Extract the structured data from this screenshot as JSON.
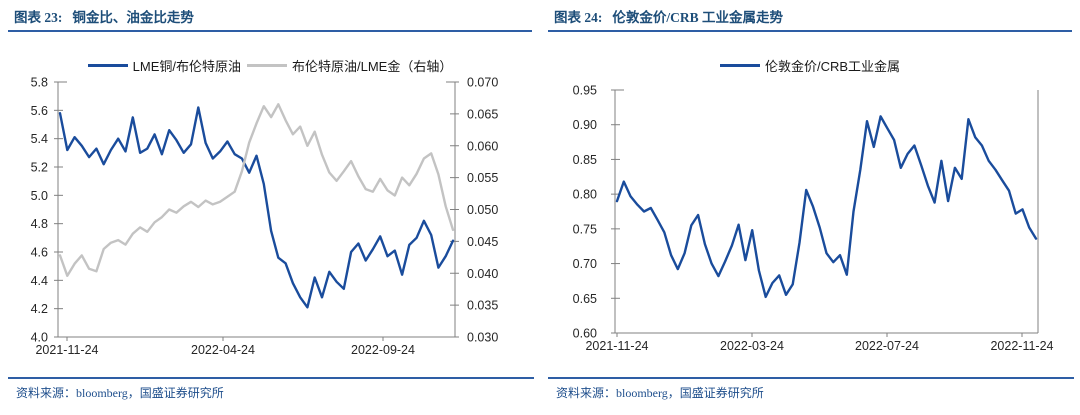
{
  "colors": {
    "accent_rule_blue": "#2e5ea5",
    "title_blue": "#1e4e79",
    "source_blue": "#1e4e8c",
    "line_blue": "#1a4c9c",
    "line_gray": "#c3c3c3",
    "axis_gray": "#808080",
    "axis_text": "#262626"
  },
  "panels": [
    {
      "title_prefix": "图表 23:",
      "title": "铜金比、油金比走势",
      "source": "资料来源：bloomberg，国盛证券研究所"
    },
    {
      "title_prefix": "图表 24:",
      "title": "伦敦金价/CRB 工业金属走势",
      "source": "资料来源：bloomberg，国盛证券研究所"
    }
  ],
  "chart_data": [
    {
      "type": "line",
      "title": "图表 23: 铜金比、油金比走势",
      "legend_position": "top",
      "grid": false,
      "x_tick_labels": [
        "2021-11-24",
        "2022-04-24",
        "2022-09-24"
      ],
      "left_ylim": [
        4.0,
        5.8
      ],
      "left_yticks": [
        "5.8",
        "5.6",
        "5.4",
        "5.2",
        "5.0",
        "4.8",
        "4.6",
        "4.4",
        "4.2",
        "4.0"
      ],
      "right_ylim": [
        0.03,
        0.07
      ],
      "right_yticks": [
        "0.070",
        "0.065",
        "0.060",
        "0.055",
        "0.050",
        "0.045",
        "0.040",
        "0.035",
        "0.030"
      ],
      "series": [
        {
          "name": "LME铜/布伦特原油",
          "axis": "left",
          "color": "#1a4c9c",
          "values": [
            5.58,
            5.32,
            5.41,
            5.35,
            5.27,
            5.33,
            5.22,
            5.32,
            5.4,
            5.31,
            5.55,
            5.3,
            5.33,
            5.43,
            5.29,
            5.46,
            5.39,
            5.3,
            5.36,
            5.62,
            5.37,
            5.26,
            5.31,
            5.38,
            5.29,
            5.26,
            5.16,
            5.28,
            5.08,
            4.75,
            4.56,
            4.52,
            4.38,
            4.28,
            4.21,
            4.42,
            4.28,
            4.46,
            4.39,
            4.34,
            4.6,
            4.66,
            4.54,
            4.62,
            4.71,
            4.57,
            4.61,
            4.44,
            4.65,
            4.7,
            4.82,
            4.72,
            4.49,
            4.57,
            4.68
          ]
        },
        {
          "name": "布伦特原油/LME金（右轴）",
          "axis": "right",
          "color": "#c3c3c3",
          "values": [
            0.0428,
            0.0396,
            0.0415,
            0.0428,
            0.0407,
            0.0403,
            0.0438,
            0.0448,
            0.0452,
            0.0445,
            0.0462,
            0.0472,
            0.0465,
            0.048,
            0.0488,
            0.05,
            0.0495,
            0.0505,
            0.0512,
            0.0504,
            0.0514,
            0.0508,
            0.0512,
            0.052,
            0.0528,
            0.056,
            0.0605,
            0.0635,
            0.0662,
            0.0645,
            0.0665,
            0.064,
            0.0618,
            0.063,
            0.06,
            0.0622,
            0.0586,
            0.0558,
            0.0545,
            0.056,
            0.0576,
            0.0552,
            0.0532,
            0.0528,
            0.0548,
            0.053,
            0.0522,
            0.055,
            0.0538,
            0.0556,
            0.058,
            0.0588,
            0.0555,
            0.0505,
            0.0468
          ]
        }
      ]
    },
    {
      "type": "line",
      "title": "图表 24: 伦敦金价/CRB 工业金属走势",
      "legend_position": "top",
      "grid": false,
      "x_tick_labels": [
        "2021-11-24",
        "2022-03-24",
        "2022-07-24",
        "2022-11-24"
      ],
      "ylim": [
        0.6,
        0.95
      ],
      "yticks": [
        "0.95",
        "0.90",
        "0.85",
        "0.80",
        "0.75",
        "0.70",
        "0.65",
        "0.60"
      ],
      "series": [
        {
          "name": "伦敦金价/CRB工业金属",
          "axis": "left",
          "color": "#1a4c9c",
          "values": [
            0.79,
            0.818,
            0.797,
            0.785,
            0.775,
            0.78,
            0.763,
            0.745,
            0.712,
            0.692,
            0.715,
            0.755,
            0.77,
            0.728,
            0.7,
            0.682,
            0.703,
            0.726,
            0.756,
            0.705,
            0.748,
            0.69,
            0.652,
            0.672,
            0.683,
            0.655,
            0.67,
            0.73,
            0.806,
            0.782,
            0.752,
            0.715,
            0.702,
            0.712,
            0.684,
            0.775,
            0.835,
            0.905,
            0.868,
            0.912,
            0.895,
            0.878,
            0.838,
            0.858,
            0.87,
            0.842,
            0.812,
            0.788,
            0.848,
            0.79,
            0.838,
            0.822,
            0.908,
            0.882,
            0.87,
            0.848,
            0.835,
            0.82,
            0.805,
            0.772,
            0.778,
            0.752,
            0.736
          ]
        }
      ]
    }
  ]
}
